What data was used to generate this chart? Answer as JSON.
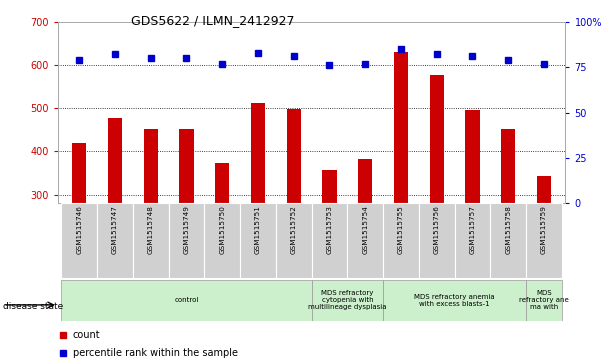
{
  "title": "GDS5622 / ILMN_2412927",
  "samples": [
    "GSM1515746",
    "GSM1515747",
    "GSM1515748",
    "GSM1515749",
    "GSM1515750",
    "GSM1515751",
    "GSM1515752",
    "GSM1515753",
    "GSM1515754",
    "GSM1515755",
    "GSM1515756",
    "GSM1515757",
    "GSM1515758",
    "GSM1515759"
  ],
  "counts": [
    420,
    477,
    452,
    453,
    373,
    511,
    499,
    358,
    383,
    630,
    578,
    495,
    452,
    343
  ],
  "percentiles": [
    79,
    82,
    80,
    80,
    77,
    83,
    81,
    76,
    77,
    85,
    82,
    81,
    79,
    77
  ],
  "ylim_left": [
    280,
    700
  ],
  "ylim_right": [
    0,
    100
  ],
  "yticks_left": [
    300,
    400,
    500,
    600,
    700
  ],
  "yticks_right": [
    0,
    25,
    50,
    75,
    100
  ],
  "bar_color": "#cc0000",
  "dot_color": "#0000cc",
  "disease_groups": [
    {
      "label": "control",
      "start": 0,
      "end": 7,
      "color": "#ccf0cc"
    },
    {
      "label": "MDS refractory\ncytopenia with\nmultilineage dysplasia",
      "start": 7,
      "end": 9,
      "color": "#ccf0cc"
    },
    {
      "label": "MDS refractory anemia\nwith excess blasts-1",
      "start": 9,
      "end": 13,
      "color": "#ccf0cc"
    },
    {
      "label": "MDS\nrefractory ane\nma with",
      "start": 13,
      "end": 14,
      "color": "#ccf0cc"
    }
  ],
  "legend_count_label": "count",
  "legend_pct_label": "percentile rank within the sample",
  "disease_state_label": "disease state"
}
